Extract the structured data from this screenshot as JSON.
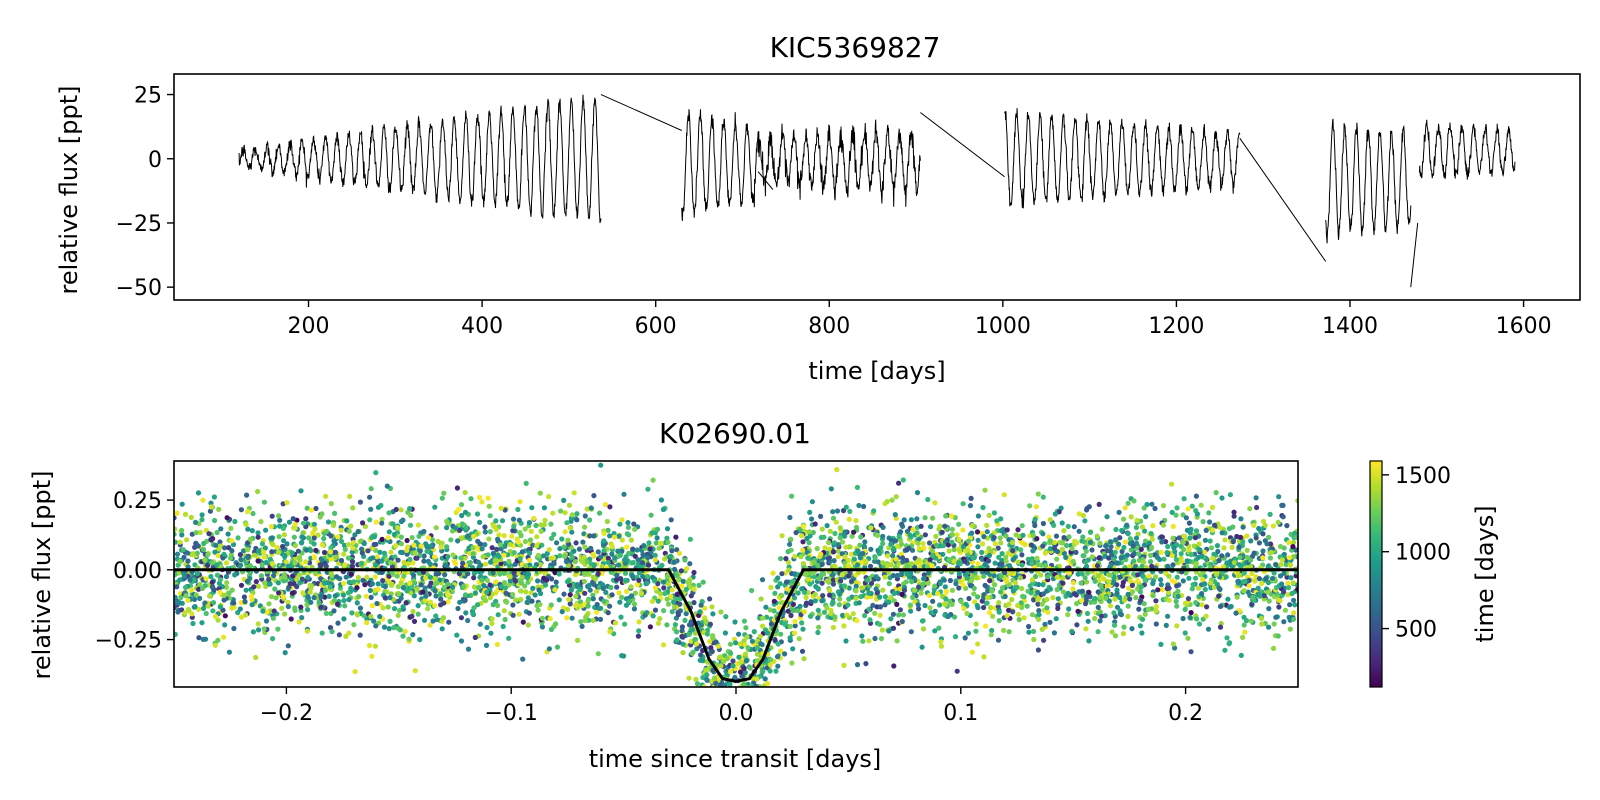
{
  "chart_data": [
    {
      "type": "line",
      "title": "KIC5369827",
      "xlabel": "time [days]",
      "ylabel": "relative flux [ppt]",
      "xlim": [
        45,
        1665
      ],
      "ylim": [
        -55,
        33
      ],
      "xticks": [
        200,
        400,
        600,
        800,
        1000,
        1200,
        1400,
        1600
      ],
      "xtick_labels": [
        "200",
        "400",
        "600",
        "800",
        "1000",
        "1200",
        "1400",
        "1600"
      ],
      "yticks": [
        25,
        0,
        -25,
        -50
      ],
      "ytick_labels": [
        "25",
        "0",
        "−25",
        "−50"
      ],
      "grid": false,
      "line_color": "#000000",
      "segments": [
        {
          "t_start": 120,
          "t_end": 537,
          "period": 13.5,
          "mean": 0,
          "amp_start": 3,
          "amp_end": 24,
          "noise": 1.5
        },
        {
          "t_start": 630,
          "t_end": 718,
          "period": 13.5,
          "mean": -2,
          "amp_start": 20,
          "amp_end": 14,
          "noise": 1.5
        },
        {
          "t_start": 718,
          "t_end": 905,
          "period": 13.5,
          "mean": -1,
          "amp_start": 8,
          "amp_end": 12,
          "noise": 2.5
        },
        {
          "t_start": 1002,
          "t_end": 1273,
          "period": 13.5,
          "mean": 0,
          "amp_start": 18,
          "amp_end": 10,
          "noise": 1.5
        },
        {
          "t_start": 1372,
          "t_end": 1470,
          "period": 13.5,
          "mean": -8,
          "amp_start": 22,
          "amp_end": 18,
          "noise": 1.5
        },
        {
          "t_start": 1480,
          "t_end": 1590,
          "period": 13.5,
          "mean": 3,
          "amp_start": 10,
          "amp_end": 8,
          "noise": 1.5
        }
      ],
      "gap_lines": [
        {
          "x": [
            537,
            630
          ],
          "y": [
            25,
            11
          ]
        },
        {
          "x": [
            718,
            735
          ],
          "y": [
            -5,
            -12
          ]
        },
        {
          "x": [
            905,
            1002
          ],
          "y": [
            18,
            -7
          ]
        },
        {
          "x": [
            1273,
            1372
          ],
          "y": [
            8,
            -40
          ]
        },
        {
          "x": [
            1470,
            1478
          ],
          "y": [
            -50,
            -25
          ]
        }
      ]
    },
    {
      "type": "scatter",
      "title": "K02690.01",
      "xlabel": "time since transit [days]",
      "ylabel": "relative flux [ppt]",
      "xlim": [
        -0.25,
        0.25
      ],
      "ylim": [
        -0.42,
        0.39
      ],
      "xticks": [
        -0.2,
        -0.1,
        0.0,
        0.1,
        0.2
      ],
      "xtick_labels": [
        "−0.2",
        "−0.1",
        "0.0",
        "0.1",
        "0.2"
      ],
      "yticks": [
        0.25,
        0.0,
        -0.25
      ],
      "ytick_labels": [
        "0.25",
        "0.00",
        "−0.25"
      ],
      "grid": false,
      "scatter": {
        "n_points": 5000,
        "noise_sigma": 0.13,
        "color_by": "time [days]",
        "time_range": [
          120,
          1590
        ]
      },
      "model": {
        "name": "transit model",
        "color": "#000000",
        "x": [
          -0.25,
          -0.03,
          -0.02,
          -0.012,
          -0.006,
          0.0,
          0.006,
          0.012,
          0.02,
          0.03,
          0.25
        ],
        "y": [
          0.0,
          0.0,
          -0.15,
          -0.32,
          -0.39,
          -0.4,
          -0.39,
          -0.32,
          -0.15,
          0.0,
          0.0
        ]
      },
      "colorbar": {
        "label": "time [days]",
        "colormap": "viridis",
        "range": [
          120,
          1590
        ],
        "ticks": [
          500,
          1000,
          1500
        ],
        "tick_labels": [
          "500",
          "1000",
          "1500"
        ],
        "colors": [
          "#440154",
          "#482878",
          "#3e4989",
          "#31688e",
          "#26828e",
          "#1f9e89",
          "#35b779",
          "#6ece58",
          "#b5de2b",
          "#fde725"
        ]
      }
    }
  ]
}
